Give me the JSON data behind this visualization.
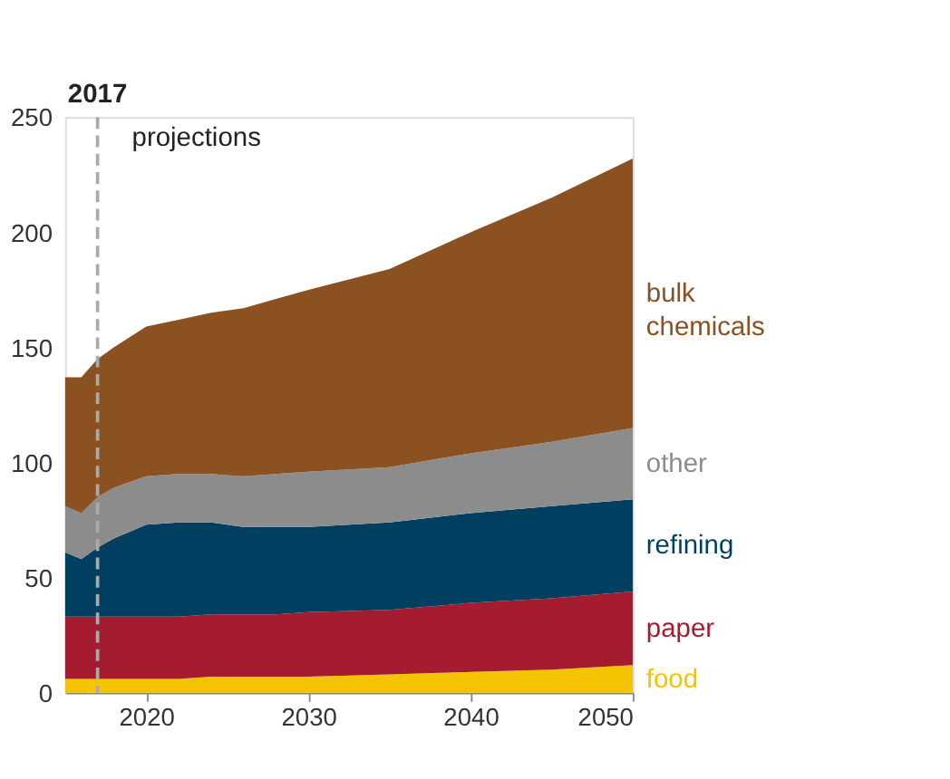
{
  "chart_data": {
    "type": "area",
    "stacked": true,
    "x": [
      2015,
      2016,
      2017,
      2018,
      2020,
      2022,
      2024,
      2026,
      2028,
      2030,
      2035,
      2040,
      2045,
      2050
    ],
    "series": [
      {
        "name": "food",
        "color": "#f5c400",
        "values": [
          6,
          6,
          6,
          6,
          6,
          6,
          7,
          7,
          7,
          7,
          8,
          9,
          10,
          12
        ]
      },
      {
        "name": "paper",
        "color": "#a51c30",
        "values": [
          27,
          27,
          27,
          27,
          27,
          27,
          27,
          27,
          27,
          28,
          28,
          30,
          31,
          32
        ]
      },
      {
        "name": "refining",
        "color": "#003f5f",
        "values": [
          28,
          25,
          30,
          34,
          40,
          41,
          40,
          38,
          38,
          37,
          38,
          39,
          40,
          40
        ]
      },
      {
        "name": "other",
        "color": "#8c8c8c",
        "values": [
          20,
          20,
          22,
          22,
          21,
          21,
          21,
          22,
          23,
          24,
          24,
          26,
          28,
          31
        ]
      },
      {
        "name": "bulk chemicals",
        "color": "#8b5120",
        "values": [
          56,
          59,
          60,
          61,
          65,
          67,
          70,
          73,
          76,
          79,
          86,
          96,
          106,
          117
        ]
      }
    ],
    "xlim": [
      2015,
      2050
    ],
    "xticks": [
      2020,
      2030,
      2040,
      2050
    ],
    "ylim": [
      0,
      250
    ],
    "yticks": [
      0,
      50,
      100,
      150,
      200,
      250
    ],
    "grid": false,
    "legend": "right",
    "ref_lines": [
      {
        "axis": "x",
        "value": 2017,
        "label": "2017",
        "color": "#aaaaaa",
        "line_style": "dashed"
      }
    ],
    "annotations": [
      "projections"
    ]
  }
}
